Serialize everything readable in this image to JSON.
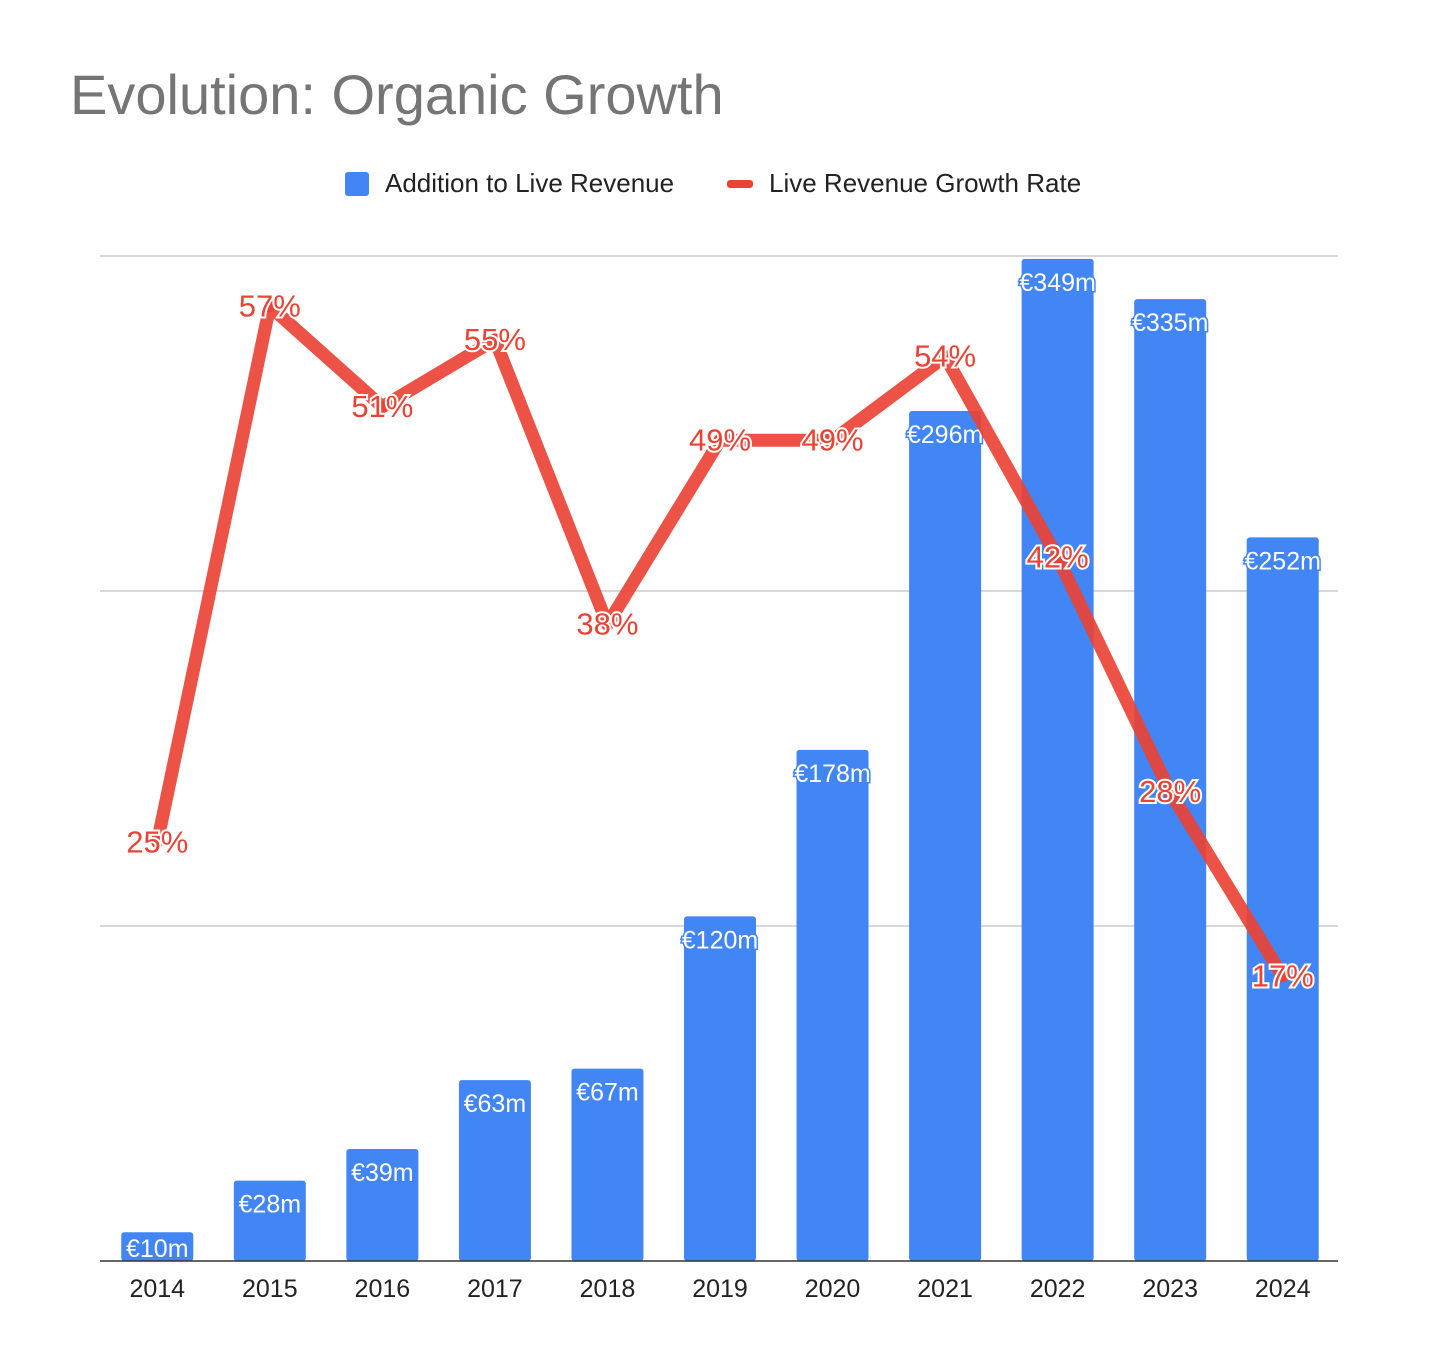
{
  "chart_data": {
    "type": "bar",
    "title": "Evolution: Organic Growth",
    "categories": [
      "2014",
      "2015",
      "2016",
      "2017",
      "2018",
      "2019",
      "2020",
      "2021",
      "2022",
      "2023",
      "2024"
    ],
    "series": [
      {
        "name": "Addition to Live Revenue",
        "type": "bar",
        "color": "#4285f4",
        "values": [
          10,
          28,
          39,
          63,
          67,
          120,
          178,
          296,
          349,
          335,
          252
        ],
        "labels": [
          "€10m",
          "€28m",
          "€39m",
          "€63m",
          "€67m",
          "€120m",
          "€178m",
          "€296m",
          "€349m",
          "€335m",
          "€252m"
        ]
      },
      {
        "name": "Live Revenue Growth Rate",
        "type": "line",
        "color": "#ea4335",
        "values": [
          25,
          57,
          51,
          55,
          38,
          49,
          49,
          54,
          42,
          28,
          17
        ],
        "labels": [
          "25%",
          "57%",
          "51%",
          "55%",
          "38%",
          "49%",
          "49%",
          "54%",
          "42%",
          "28%",
          "17%"
        ]
      }
    ],
    "bar_axis_range": [
      0,
      350
    ],
    "line_axis_range": [
      0,
      60
    ],
    "grid": true,
    "legend_position": "top-center"
  }
}
